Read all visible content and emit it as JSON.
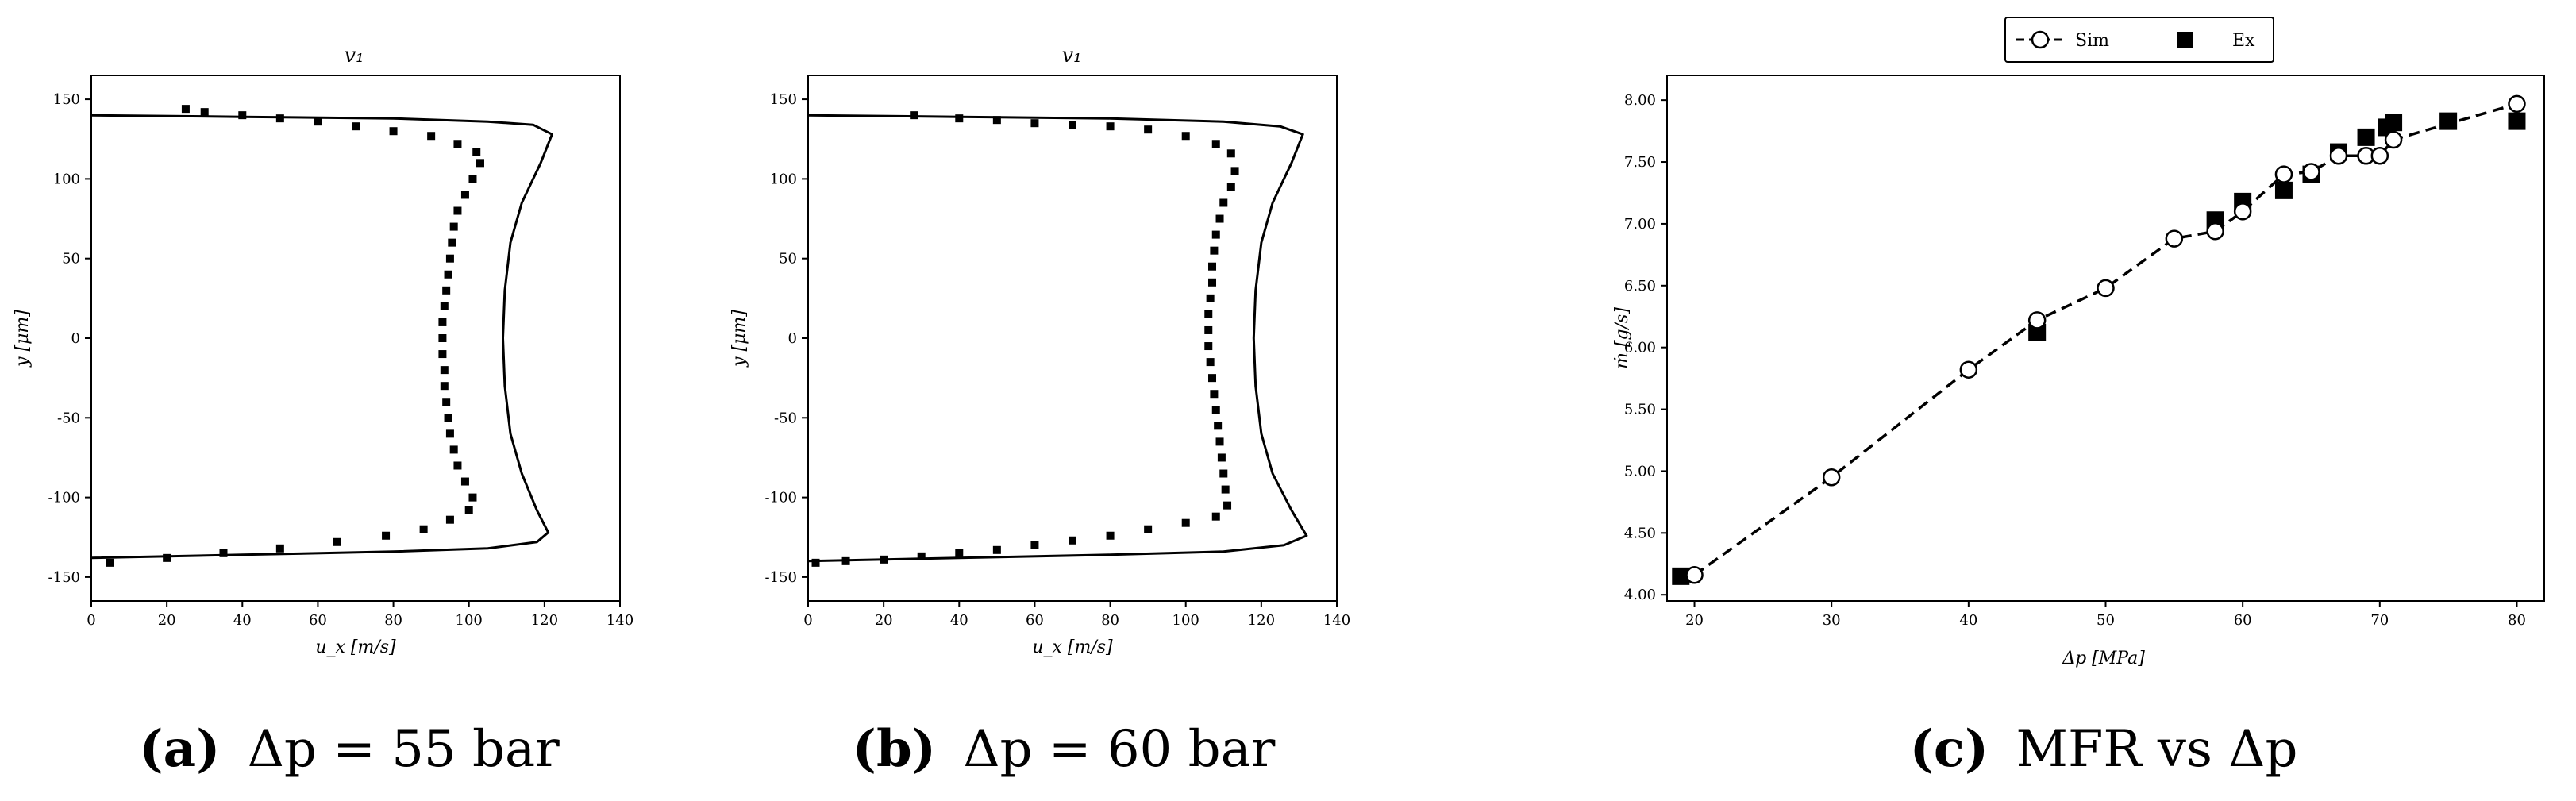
{
  "figure": {
    "panels": [
      {
        "id": "a",
        "title": "v₁",
        "xlabel": "u_x [m/s]",
        "ylabel": "y [μm]",
        "caption_letter": "(a)",
        "caption_text": "Δp = 55 bar"
      },
      {
        "id": "b",
        "title": "v₁",
        "xlabel": "u_x [m/s]",
        "ylabel": "y [μm]",
        "caption_letter": "(b)",
        "caption_text": "Δp = 60 bar"
      },
      {
        "id": "c",
        "title": "",
        "xlabel": "Δp [MPa]",
        "ylabel": "ṁ [g/s]",
        "caption_letter": "(c)",
        "caption_text": "MFR vs Δp",
        "legend": [
          "Sim",
          "Ex"
        ]
      }
    ]
  },
  "chart_data": [
    {
      "type": "line",
      "panel": "a",
      "title": "v₁",
      "xlabel": "u_x [m/s]",
      "ylabel": "y [μm]",
      "xlim": [
        0,
        140
      ],
      "ylim": [
        -165,
        165
      ],
      "xticks": [
        0,
        20,
        40,
        60,
        80,
        100,
        120,
        140
      ],
      "yticks": [
        -150,
        -100,
        -50,
        0,
        50,
        100,
        150
      ],
      "series": [
        {
          "style": "solid",
          "points": [
            [
              0,
              140
            ],
            [
              40,
              139
            ],
            [
              80,
              138
            ],
            [
              105,
              136
            ],
            [
              117,
              134
            ],
            [
              122,
              128
            ],
            [
              119,
              110
            ],
            [
              114,
              85
            ],
            [
              111,
              60
            ],
            [
              109.5,
              30
            ],
            [
              109,
              0
            ],
            [
              109.5,
              -30
            ],
            [
              111,
              -60
            ],
            [
              114,
              -85
            ],
            [
              118,
              -108
            ],
            [
              121,
              -122
            ],
            [
              118,
              -128
            ],
            [
              105,
              -132
            ],
            [
              80,
              -134
            ],
            [
              40,
              -136
            ],
            [
              0,
              -138
            ]
          ]
        },
        {
          "style": "markers",
          "points": [
            [
              25,
              144
            ],
            [
              30,
              142
            ],
            [
              40,
              140
            ],
            [
              50,
              138
            ],
            [
              60,
              136
            ],
            [
              70,
              133
            ],
            [
              80,
              130
            ],
            [
              90,
              127
            ],
            [
              97,
              122
            ],
            [
              102,
              117
            ],
            [
              103,
              110
            ],
            [
              101,
              100
            ],
            [
              99,
              90
            ],
            [
              97,
              80
            ],
            [
              96,
              70
            ],
            [
              95.5,
              60
            ],
            [
              95,
              50
            ],
            [
              94.5,
              40
            ],
            [
              94,
              30
            ],
            [
              93.5,
              20
            ],
            [
              93,
              10
            ],
            [
              93,
              0
            ],
            [
              93,
              -10
            ],
            [
              93.5,
              -20
            ],
            [
              93.5,
              -30
            ],
            [
              94,
              -40
            ],
            [
              94.5,
              -50
            ],
            [
              95,
              -60
            ],
            [
              96,
              -70
            ],
            [
              97,
              -80
            ],
            [
              99,
              -90
            ],
            [
              101,
              -100
            ],
            [
              100,
              -108
            ],
            [
              95,
              -114
            ],
            [
              88,
              -120
            ],
            [
              78,
              -124
            ],
            [
              65,
              -128
            ],
            [
              50,
              -132
            ],
            [
              35,
              -135
            ],
            [
              20,
              -138
            ],
            [
              5,
              -141
            ]
          ]
        }
      ]
    },
    {
      "type": "line",
      "panel": "b",
      "title": "v₁",
      "xlabel": "u_x [m/s]",
      "ylabel": "y [μm]",
      "xlim": [
        0,
        140
      ],
      "ylim": [
        -165,
        165
      ],
      "xticks": [
        0,
        20,
        40,
        60,
        80,
        100,
        120,
        140
      ],
      "yticks": [
        -150,
        -100,
        -50,
        0,
        50,
        100,
        150
      ],
      "series": [
        {
          "style": "solid",
          "points": [
            [
              0,
              140
            ],
            [
              40,
              139
            ],
            [
              80,
              138
            ],
            [
              110,
              136
            ],
            [
              125,
              133
            ],
            [
              131,
              128
            ],
            [
              128,
              110
            ],
            [
              123,
              85
            ],
            [
              120,
              60
            ],
            [
              118.5,
              30
            ],
            [
              118,
              0
            ],
            [
              118.5,
              -30
            ],
            [
              120,
              -60
            ],
            [
              123,
              -85
            ],
            [
              128,
              -108
            ],
            [
              132,
              -124
            ],
            [
              126,
              -130
            ],
            [
              110,
              -134
            ],
            [
              80,
              -136
            ],
            [
              40,
              -138
            ],
            [
              0,
              -140
            ]
          ]
        },
        {
          "style": "markers",
          "points": [
            [
              28,
              140
            ],
            [
              40,
              138
            ],
            [
              50,
              137
            ],
            [
              60,
              135
            ],
            [
              70,
              134
            ],
            [
              80,
              133
            ],
            [
              90,
              131
            ],
            [
              100,
              127
            ],
            [
              108,
              122
            ],
            [
              112,
              116
            ],
            [
              113,
              105
            ],
            [
              112,
              95
            ],
            [
              110,
              85
            ],
            [
              109,
              75
            ],
            [
              108,
              65
            ],
            [
              107.5,
              55
            ],
            [
              107,
              45
            ],
            [
              107,
              35
            ],
            [
              106.5,
              25
            ],
            [
              106,
              15
            ],
            [
              106,
              5
            ],
            [
              106,
              -5
            ],
            [
              106.5,
              -15
            ],
            [
              107,
              -25
            ],
            [
              107.5,
              -35
            ],
            [
              108,
              -45
            ],
            [
              108.5,
              -55
            ],
            [
              109,
              -65
            ],
            [
              109.5,
              -75
            ],
            [
              110,
              -85
            ],
            [
              110.5,
              -95
            ],
            [
              111,
              -105
            ],
            [
              108,
              -112
            ],
            [
              100,
              -116
            ],
            [
              90,
              -120
            ],
            [
              80,
              -124
            ],
            [
              70,
              -127
            ],
            [
              60,
              -130
            ],
            [
              50,
              -133
            ],
            [
              40,
              -135
            ],
            [
              30,
              -137
            ],
            [
              20,
              -139
            ],
            [
              10,
              -140
            ],
            [
              2,
              -141
            ]
          ]
        }
      ]
    },
    {
      "type": "scatter",
      "panel": "c",
      "xlabel": "Δp [MPa]",
      "ylabel": "ṁ [g/s]",
      "xlim": [
        18,
        82
      ],
      "ylim": [
        3.95,
        8.2
      ],
      "xticks": [
        20,
        30,
        40,
        50,
        60,
        70,
        80
      ],
      "yticks": [
        4.0,
        4.5,
        5.0,
        5.5,
        6.0,
        6.5,
        7.0,
        7.5,
        8.0
      ],
      "legend_placement": "top-center, outside",
      "series": [
        {
          "name": "Sim",
          "marker": "open-circle",
          "line": "dashed",
          "x": [
            20,
            30,
            40,
            45,
            50,
            55,
            58,
            60,
            63,
            65,
            67,
            69,
            70,
            71,
            80
          ],
          "y": [
            4.16,
            4.95,
            5.82,
            6.22,
            6.48,
            6.88,
            6.94,
            7.1,
            7.4,
            7.42,
            7.55,
            7.55,
            7.55,
            7.68,
            7.97
          ]
        },
        {
          "name": "Ex",
          "marker": "filled-square",
          "x": [
            19,
            45,
            58,
            60,
            63,
            65,
            67,
            69,
            70.5,
            71,
            75,
            80
          ],
          "y": [
            4.15,
            6.12,
            7.03,
            7.18,
            7.27,
            7.4,
            7.58,
            7.7,
            7.78,
            7.82,
            7.83,
            7.83
          ]
        }
      ]
    }
  ]
}
